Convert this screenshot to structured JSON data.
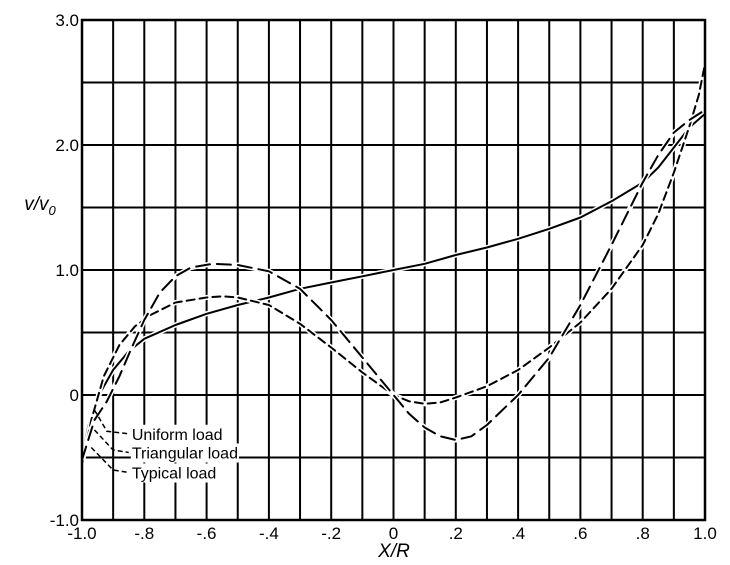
{
  "chart_data": {
    "type": "line",
    "xlabel": "X/R",
    "ylabel": "v/v",
    "ylabel_sub": "0",
    "xlim": [
      -1.0,
      1.0
    ],
    "ylim": [
      -1.0,
      3.0
    ],
    "x_ticks": [
      {
        "value": -1.0,
        "label": "-1.0"
      },
      {
        "value": -0.8,
        "label": "-.8"
      },
      {
        "value": -0.6,
        "label": "-.6"
      },
      {
        "value": -0.4,
        "label": "-.4"
      },
      {
        "value": -0.2,
        "label": "-.2"
      },
      {
        "value": 0.0,
        "label": "0"
      },
      {
        "value": 0.2,
        "label": ".2"
      },
      {
        "value": 0.4,
        "label": ".4"
      },
      {
        "value": 0.6,
        "label": ".6"
      },
      {
        "value": 0.8,
        "label": ".8"
      },
      {
        "value": 1.0,
        "label": "1.0"
      }
    ],
    "y_ticks": [
      {
        "value": -1.0,
        "label": "-1.0"
      },
      {
        "value": 0.0,
        "label": "0"
      },
      {
        "value": 1.0,
        "label": "1.0"
      },
      {
        "value": 2.0,
        "label": "2.0"
      },
      {
        "value": 3.0,
        "label": "3.0"
      }
    ],
    "grid": true,
    "x_grid_step": 0.1,
    "y_grid_step": 0.5,
    "legend_placement": "bottom-left",
    "series": [
      {
        "name": "Uniform load",
        "dash": "solid",
        "label_at": [
          -0.84,
          -0.31
        ],
        "leader": [
          [
            -0.96,
            -0.12
          ],
          [
            -0.92,
            -0.29
          ],
          [
            -0.85,
            -0.31
          ]
        ],
        "points": [
          [
            -1.0,
            -0.5
          ],
          [
            -0.98,
            -0.25
          ],
          [
            -0.95,
            -0.02
          ],
          [
            -0.9,
            0.2
          ],
          [
            -0.85,
            0.35
          ],
          [
            -0.8,
            0.45
          ],
          [
            -0.7,
            0.56
          ],
          [
            -0.6,
            0.65
          ],
          [
            -0.5,
            0.72
          ],
          [
            -0.4,
            0.78
          ],
          [
            -0.3,
            0.85
          ],
          [
            -0.2,
            0.9
          ],
          [
            -0.1,
            0.95
          ],
          [
            0.0,
            1.0
          ],
          [
            0.1,
            1.05
          ],
          [
            0.2,
            1.12
          ],
          [
            0.3,
            1.18
          ],
          [
            0.4,
            1.25
          ],
          [
            0.5,
            1.33
          ],
          [
            0.6,
            1.42
          ],
          [
            0.7,
            1.55
          ],
          [
            0.8,
            1.7
          ],
          [
            0.85,
            1.82
          ],
          [
            0.9,
            1.98
          ],
          [
            0.95,
            2.14
          ],
          [
            1.0,
            2.25
          ]
        ]
      },
      {
        "name": "Triangular load",
        "dash": "dashed",
        "label_at": [
          -0.84,
          -0.46
        ],
        "leader": [
          [
            -0.96,
            -0.28
          ],
          [
            -0.9,
            -0.44
          ],
          [
            -0.85,
            -0.46
          ]
        ],
        "points": [
          [
            -1.0,
            -0.55
          ],
          [
            -0.97,
            -0.2
          ],
          [
            -0.93,
            0.15
          ],
          [
            -0.88,
            0.4
          ],
          [
            -0.83,
            0.55
          ],
          [
            -0.78,
            0.64
          ],
          [
            -0.7,
            0.74
          ],
          [
            -0.6,
            0.78
          ],
          [
            -0.55,
            0.79
          ],
          [
            -0.5,
            0.78
          ],
          [
            -0.4,
            0.72
          ],
          [
            -0.3,
            0.57
          ],
          [
            -0.2,
            0.38
          ],
          [
            -0.1,
            0.18
          ],
          [
            0.0,
            0.0
          ],
          [
            0.05,
            -0.05
          ],
          [
            0.1,
            -0.07
          ],
          [
            0.15,
            -0.06
          ],
          [
            0.2,
            -0.02
          ],
          [
            0.3,
            0.07
          ],
          [
            0.4,
            0.2
          ],
          [
            0.5,
            0.38
          ],
          [
            0.6,
            0.58
          ],
          [
            0.7,
            0.85
          ],
          [
            0.8,
            1.2
          ],
          [
            0.85,
            1.45
          ],
          [
            0.9,
            1.78
          ],
          [
            0.95,
            2.15
          ],
          [
            0.98,
            2.4
          ],
          [
            1.0,
            2.65
          ]
        ]
      },
      {
        "name": "Typical load",
        "dash": "long-dashed",
        "label_at": [
          -0.84,
          -0.62
        ],
        "leader": [
          [
            -0.97,
            -0.42
          ],
          [
            -0.9,
            -0.6
          ],
          [
            -0.85,
            -0.62
          ]
        ],
        "points": [
          [
            -1.0,
            -0.52
          ],
          [
            -0.96,
            -0.2
          ],
          [
            -0.92,
            -0.05
          ],
          [
            -0.88,
            0.15
          ],
          [
            -0.84,
            0.38
          ],
          [
            -0.8,
            0.6
          ],
          [
            -0.75,
            0.82
          ],
          [
            -0.7,
            0.95
          ],
          [
            -0.65,
            1.02
          ],
          [
            -0.58,
            1.05
          ],
          [
            -0.5,
            1.04
          ],
          [
            -0.4,
            0.99
          ],
          [
            -0.3,
            0.85
          ],
          [
            -0.2,
            0.6
          ],
          [
            -0.1,
            0.3
          ],
          [
            0.0,
            0.0
          ],
          [
            0.05,
            -0.15
          ],
          [
            0.1,
            -0.26
          ],
          [
            0.15,
            -0.33
          ],
          [
            0.2,
            -0.36
          ],
          [
            0.25,
            -0.33
          ],
          [
            0.3,
            -0.24
          ],
          [
            0.4,
            0.0
          ],
          [
            0.5,
            0.3
          ],
          [
            0.6,
            0.72
          ],
          [
            0.7,
            1.2
          ],
          [
            0.8,
            1.7
          ],
          [
            0.85,
            1.92
          ],
          [
            0.9,
            2.1
          ],
          [
            0.95,
            2.2
          ],
          [
            1.0,
            2.28
          ]
        ]
      }
    ]
  }
}
